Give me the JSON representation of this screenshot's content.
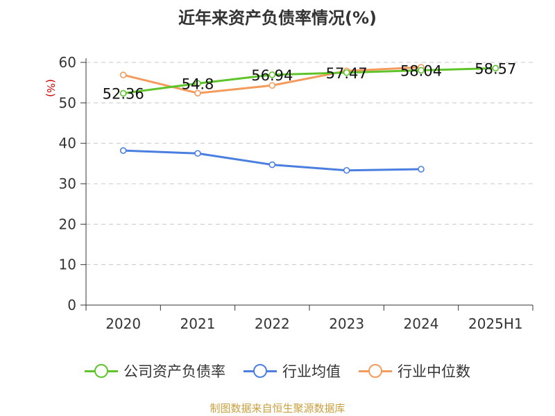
{
  "title": "近年来资产负债率情况(%)",
  "source": "制图数据来自恒生聚源数据库",
  "chart_data": {
    "type": "line",
    "title": "近年来资产负债率情况(%)",
    "ylabel": "(%)",
    "xlabel": "",
    "categories": [
      "2020",
      "2021",
      "2022",
      "2023",
      "2024",
      "2025H1"
    ],
    "ylim": [
      0,
      60
    ],
    "yticks": [
      0,
      10,
      20,
      30,
      40,
      50,
      60
    ],
    "grid": true,
    "legend": "bottom",
    "series": [
      {
        "name": "公司资产负债率",
        "color": "#5ec42a",
        "values": [
          52.36,
          54.8,
          56.94,
          57.47,
          58.04,
          58.57
        ],
        "labels": [
          "52.36",
          "54.8",
          "56.94",
          "57.47",
          "58.04",
          "58.57"
        ]
      },
      {
        "name": "行业均值",
        "color": "#4a7ee0",
        "values": [
          38.2,
          37.5,
          34.7,
          33.3,
          33.6,
          null
        ]
      },
      {
        "name": "行业中位数",
        "color": "#f59a5d",
        "values": [
          56.9,
          52.4,
          54.3,
          57.9,
          58.8,
          null
        ]
      }
    ]
  }
}
